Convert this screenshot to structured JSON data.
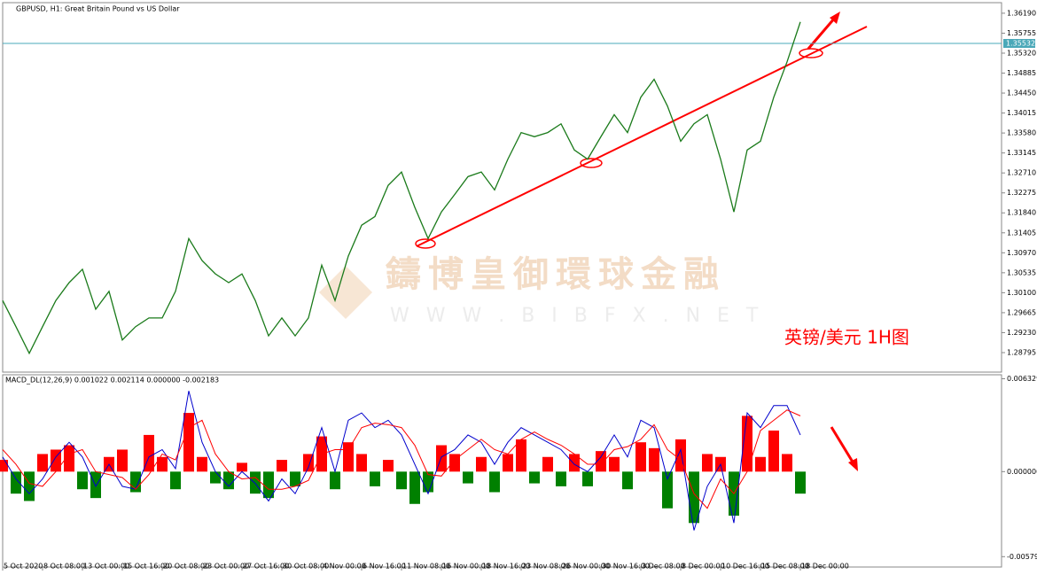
{
  "chart_data": [
    {
      "type": "line",
      "title": "GBPUSD, H1:  Great Britain Pound vs US Dollar",
      "annotation": "英镑/美元 1H图",
      "watermark_title": "鑄博皇御環球金融",
      "watermark_url": "W W W . B I B F X . N E T",
      "categories": [
        "5 Oct 2020",
        null,
        null,
        "8 Oct 08:00",
        null,
        null,
        "13 Oct 00:00",
        null,
        null,
        "15 Oct 16:00",
        null,
        null,
        "20 Oct 08:00",
        null,
        null,
        "23 Oct 00:00",
        null,
        null,
        "27 Oct 16:00",
        null,
        null,
        "30 Oct 08:00",
        null,
        null,
        "4 Nov 00:00",
        null,
        null,
        "6 Nov 16:00",
        null,
        null,
        "11 Nov 08:00",
        null,
        null,
        "16 Nov 00:00",
        null,
        null,
        "18 Nov 16:00",
        null,
        null,
        "23 Nov 08:00",
        null,
        null,
        "26 Nov 00:00",
        null,
        null,
        "30 Nov 16:00",
        null,
        null,
        "3 Dec 08:00",
        null,
        null,
        "8 Dec 00:00",
        null,
        null,
        "10 Dec 16:00",
        null,
        null,
        "15 Dec 08:00",
        null,
        null,
        "18 Dec 00:00"
      ],
      "values": [
        1.2993,
        1.2936,
        1.2878,
        1.2936,
        1.2993,
        1.3032,
        1.3061,
        1.2974,
        1.3013,
        1.2907,
        1.2936,
        1.2955,
        1.2955,
        1.3013,
        1.3128,
        1.308,
        1.3051,
        1.3032,
        1.3051,
        1.2993,
        1.2916,
        1.2955,
        1.2916,
        1.2955,
        1.307,
        1.2993,
        1.309,
        1.3157,
        1.3176,
        1.3244,
        1.3273,
        1.3196,
        1.3128,
        1.3186,
        1.3224,
        1.3263,
        1.3273,
        1.3234,
        1.3301,
        1.3359,
        1.335,
        1.3359,
        1.3378,
        1.3321,
        1.3301,
        1.335,
        1.3398,
        1.3359,
        1.3436,
        1.3475,
        1.3417,
        1.334,
        1.3378,
        1.3398,
        1.3301,
        1.3186,
        1.3321,
        1.334,
        1.3436,
        1.3513,
        1.36
      ],
      "color": "#1a7a1a",
      "current_price": 1.35532,
      "current_price_color": "#4aa8b8",
      "ylim": [
        1.2837,
        1.3642
      ],
      "yticks": [
        {
          "value": 1.3619,
          "label": "1.36190"
        },
        {
          "value": 1.35755,
          "label": "1.35755"
        },
        {
          "value": 1.3532,
          "label": "1.35320"
        },
        {
          "value": 1.34885,
          "label": "1.34885"
        },
        {
          "value": 1.3445,
          "label": "1.34450"
        },
        {
          "value": 1.34015,
          "label": "1.34015"
        },
        {
          "value": 1.3358,
          "label": "1.33580"
        },
        {
          "value": 1.33145,
          "label": "1.33145"
        },
        {
          "value": 1.3271,
          "label": "1.32710"
        },
        {
          "value": 1.32275,
          "label": "1.32275"
        },
        {
          "value": 1.3184,
          "label": "1.31840"
        },
        {
          "value": 1.31405,
          "label": "1.31405"
        },
        {
          "value": 1.3097,
          "label": "1.30970"
        },
        {
          "value": 1.30535,
          "label": "1.30535"
        },
        {
          "value": 1.301,
          "label": "1.30100"
        },
        {
          "value": 1.29665,
          "label": "1.29665"
        },
        {
          "value": 1.2923,
          "label": "1.29230"
        },
        {
          "value": 1.28795,
          "label": "1.28795"
        }
      ]
    },
    {
      "type": "bar",
      "title": "MACD_DL(12,26,9) 0.001022 0.002114 0.000000 -0.002183",
      "values": [
        0.0008,
        -0.0015,
        -0.002,
        0.0012,
        0.0015,
        0.0018,
        -0.0012,
        -0.0018,
        0.001,
        0.0015,
        -0.0014,
        0.0025,
        0.001,
        -0.0012,
        0.004,
        0.001,
        -0.0008,
        -0.0012,
        0.0006,
        -0.0015,
        -0.0018,
        0.0008,
        -0.001,
        0.0012,
        0.0024,
        -0.0012,
        0.002,
        0.0012,
        -0.001,
        0.0008,
        -0.0012,
        -0.0022,
        -0.0014,
        0.0018,
        0.0012,
        -0.0008,
        0.001,
        -0.0014,
        0.0012,
        0.0022,
        -0.0008,
        0.001,
        -0.001,
        0.0012,
        -0.001,
        0.0014,
        0.001,
        -0.0012,
        0.002,
        0.0016,
        -0.0025,
        0.0022,
        -0.0035,
        0.0012,
        0.001,
        -0.003,
        0.0038,
        0.001,
        0.0028,
        0.0012,
        -0.0015
      ],
      "positive_color": "#ff0000",
      "negative_color": "#008000",
      "lines": [
        {
          "color": "#0000cc",
          "values": [
            0.001,
            -0.0005,
            -0.0015,
            -0.0005,
            0.001,
            0.002,
            0.001,
            -0.001,
            0.0005,
            -0.001,
            -0.0012,
            0.001,
            0.0015,
            0.0002,
            0.0055,
            0.002,
            0.0,
            -0.001,
            0.0,
            -0.0008,
            -0.002,
            -0.0005,
            -0.0015,
            0.0003,
            0.003,
            0.0,
            0.0035,
            0.004,
            0.003,
            0.0035,
            0.0025,
            0.0005,
            -0.0015,
            0.001,
            0.0015,
            0.0025,
            0.002,
            0.0005,
            0.002,
            0.003,
            0.0025,
            0.002,
            0.0015,
            0.0005,
            0.0,
            0.001,
            0.0025,
            0.001,
            0.0035,
            0.003,
            -0.0005,
            0.0015,
            -0.004,
            -0.001,
            0.0005,
            -0.0035,
            0.004,
            0.003,
            0.0045,
            0.0045,
            0.0025
          ]
        },
        {
          "color": "#ff0000",
          "values": [
            0.0015,
            0.0005,
            -0.0008,
            -0.001,
            0.0,
            0.0012,
            0.0015,
            0.0,
            -0.0002,
            -0.0004,
            -0.0012,
            -0.0002,
            0.0012,
            0.0008,
            0.003,
            0.0035,
            0.0012,
            0.0,
            -0.0005,
            -0.0004,
            -0.0012,
            -0.0012,
            -0.001,
            -0.0006,
            0.0012,
            0.0015,
            0.0015,
            0.003,
            0.0033,
            0.0032,
            0.003,
            0.0018,
            -0.0002,
            -0.0003,
            0.0008,
            0.0015,
            0.0022,
            0.0015,
            0.0012,
            0.0022,
            0.0027,
            0.0022,
            0.0018,
            0.0012,
            0.0005,
            0.0005,
            0.0015,
            0.0017,
            0.0022,
            0.0032,
            0.0015,
            0.0008,
            -0.0015,
            -0.0025,
            -0.0005,
            -0.0015,
            0.0,
            0.0028,
            0.0035,
            0.0042,
            0.0038
          ]
        }
      ],
      "ylim": [
        -0.0065,
        0.0066
      ],
      "yticks": [
        0.006329,
        {
          "value": 0,
          "label": "0.000000"
        },
        -0.005793
      ]
    }
  ]
}
